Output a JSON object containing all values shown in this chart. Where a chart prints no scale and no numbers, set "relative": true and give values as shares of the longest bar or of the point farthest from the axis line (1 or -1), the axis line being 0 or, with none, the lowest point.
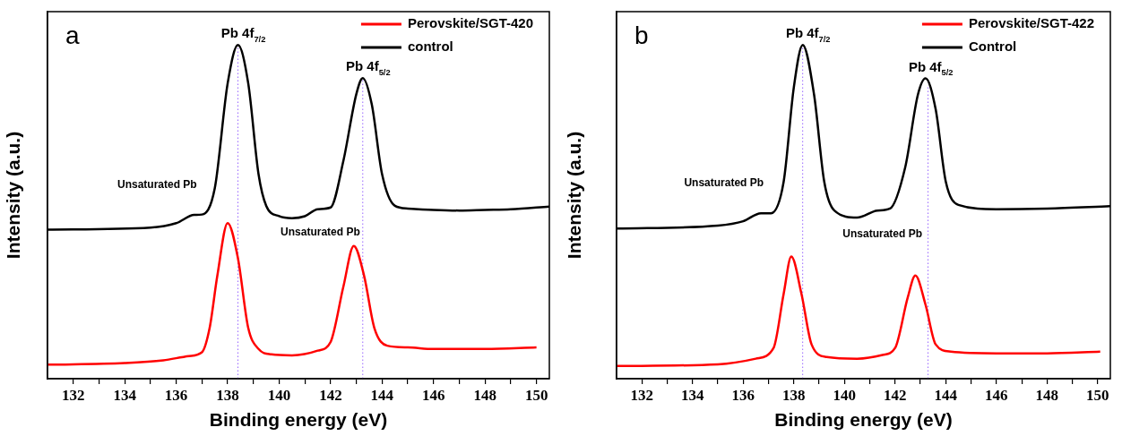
{
  "chart_data": [
    {
      "type": "line",
      "xlabel": "Binding energy (eV)",
      "ylabel": "Intensity (a.u.)",
      "relative": true,
      "legend": "top right",
      "line_style": "solid",
      "marker": "none",
      "xlim": [
        131,
        150.5
      ],
      "xticks": [
        132,
        {
          "value": 133,
          "label": null
        },
        134,
        {
          "value": 135,
          "label": null
        },
        136,
        {
          "value": 137,
          "label": null
        },
        138,
        {
          "value": 139,
          "label": null
        },
        140,
        {
          "value": 141,
          "label": null
        },
        142,
        {
          "value": 143,
          "label": null
        },
        144,
        {
          "value": 145,
          "label": null
        },
        146,
        {
          "value": 147,
          "label": null
        },
        148,
        {
          "value": 149,
          "label": null
        },
        150
      ],
      "series": [
        {
          "name": "Perovskite/SGT-420",
          "color": "#ff0000",
          "x": [
            131,
            134,
            135.5,
            136.5,
            137,
            137.3,
            137.6,
            138,
            138.4,
            138.8,
            139.2,
            139.7,
            140.5,
            141.5,
            142,
            142.5,
            142.9,
            143.3,
            143.7,
            144.2,
            145,
            146,
            148,
            150
          ],
          "values": [
            0.042,
            0.047,
            0.055,
            0.068,
            0.079,
            0.152,
            0.309,
            0.466,
            0.361,
            0.152,
            0.089,
            0.073,
            0.07,
            0.084,
            0.11,
            0.277,
            0.398,
            0.309,
            0.152,
            0.099,
            0.094,
            0.089,
            0.089,
            0.094
          ]
        },
        {
          "name": "control",
          "color": "#000000",
          "x": [
            131,
            135,
            136,
            136.7,
            137,
            137.5,
            138,
            138.4,
            138.8,
            139.2,
            139.5,
            140,
            140.5,
            141,
            141.5,
            142,
            142.5,
            143,
            143.25,
            143.6,
            144,
            144.5,
            145,
            146,
            147,
            148,
            149,
            150.5
          ],
          "values": [
            0.447,
            0.453,
            0.466,
            0.491,
            0.492,
            0.571,
            0.885,
            1,
            0.885,
            0.613,
            0.518,
            0.487,
            0.481,
            0.487,
            0.508,
            0.513,
            0.654,
            0.853,
            0.901,
            0.822,
            0.613,
            0.518,
            0.51,
            0.506,
            0.504,
            0.506,
            0.508,
            0.516
          ]
        }
      ],
      "ref_lines": [
        {
          "axis": "x",
          "value": 138.4,
          "color": "#9966ff",
          "line_style": "dotted"
        },
        {
          "axis": "x",
          "value": 143.25,
          "color": "#9966ff",
          "line_style": "dotted"
        }
      ],
      "annotations": [
        "a",
        {
          "text": "Pb 4f$_{7/2}$",
          "x": 138.4,
          "y": 1
        },
        {
          "text": "Pb 4f$_{5/2}$",
          "x": 143.25,
          "y": 0.901
        },
        {
          "text": "Unsaturated Pb",
          "x": 136.7,
          "y": 0.491
        },
        {
          "text": "Unsaturated Pb",
          "x": 141.6,
          "y": 0.51
        }
      ]
    },
    {
      "type": "line",
      "xlabel": "Binding energy (eV)",
      "ylabel": "Intensity (a.u.)",
      "relative": true,
      "legend": "top right",
      "line_style": "solid",
      "marker": "none",
      "xlim": [
        131,
        150.5
      ],
      "xticks": [
        132,
        {
          "value": 133,
          "label": null
        },
        134,
        {
          "value": 135,
          "label": null
        },
        136,
        {
          "value": 137,
          "label": null
        },
        138,
        {
          "value": 139,
          "label": null
        },
        140,
        {
          "value": 141,
          "label": null
        },
        142,
        {
          "value": 143,
          "label": null
        },
        144,
        {
          "value": 145,
          "label": null
        },
        146,
        {
          "value": 147,
          "label": null
        },
        148,
        {
          "value": 149,
          "label": null
        },
        150
      ],
      "series": [
        {
          "name": "Perovskite/SGT-422",
          "color": "#ff0000",
          "x": [
            131,
            135,
            136.5,
            137.2,
            137.6,
            137.9,
            138.3,
            138.7,
            139.3,
            140.5,
            141.5,
            142,
            142.5,
            142.8,
            143.2,
            143.6,
            144.2,
            146,
            148,
            150.1
          ],
          "values": [
            0.038,
            0.043,
            0.06,
            0.092,
            0.255,
            0.366,
            0.255,
            0.103,
            0.065,
            0.06,
            0.071,
            0.092,
            0.244,
            0.309,
            0.222,
            0.103,
            0.081,
            0.076,
            0.076,
            0.081
          ]
        },
        {
          "name": "Control",
          "color": "#000000",
          "x": [
            131,
            135,
            136,
            136.7,
            137.1,
            137.6,
            138,
            138.35,
            138.8,
            139.2,
            139.6,
            140.5,
            141.3,
            141.8,
            142.4,
            142.9,
            143.2,
            143.6,
            144,
            144.5,
            146,
            148,
            150.5
          ],
          "values": [
            0.45,
            0.459,
            0.472,
            0.496,
            0.496,
            0.591,
            0.873,
            1,
            0.851,
            0.591,
            0.504,
            0.483,
            0.504,
            0.51,
            0.634,
            0.851,
            0.9,
            0.808,
            0.591,
            0.521,
            0.508,
            0.51,
            0.517
          ]
        }
      ],
      "ref_lines": [
        {
          "axis": "x",
          "value": 138.35,
          "color": "#9966ff",
          "line_style": "dotted"
        },
        {
          "axis": "x",
          "value": 143.3,
          "color": "#9966ff",
          "line_style": "dotted"
        }
      ],
      "annotations": [
        "b",
        {
          "text": "Pb 4f$_{7/2}$",
          "x": 138.35,
          "y": 1
        },
        {
          "text": "Pb 4f$_{5/2}$",
          "x": 143.2,
          "y": 0.9
        },
        {
          "text": "Unsaturated Pb",
          "x": 136.7,
          "y": 0.496
        },
        {
          "text": "Unsaturated Pb",
          "x": 141.5,
          "y": 0.504
        }
      ]
    }
  ]
}
